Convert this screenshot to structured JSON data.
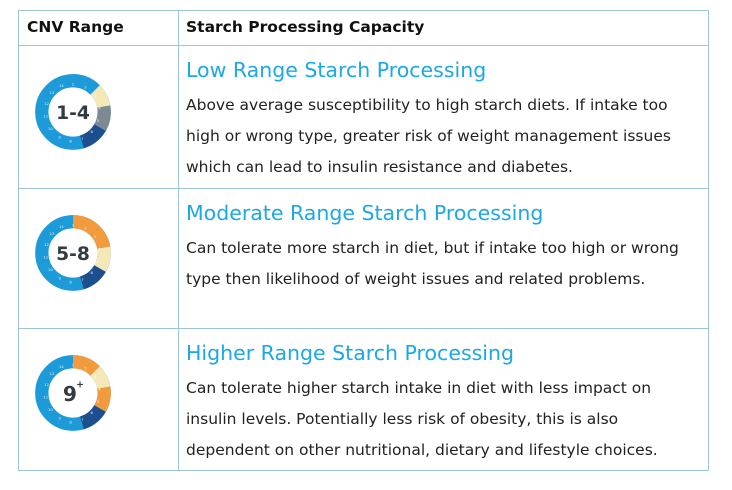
{
  "header": {
    "cnv_range": "CNV Range",
    "capacity": "Starch Processing Capacity"
  },
  "rows": [
    {
      "badge": "1-4",
      "title": "Low Range Starch Processing",
      "description": "Above average susceptibility to high starch diets. If intake too high or wrong type, greater risk of weight management issues which can lead to insulin resistance and diabetes."
    },
    {
      "badge": "5-8",
      "title": "Moderate Range Starch Processing",
      "description": "Can tolerate more starch in diet, but if intake too high or wrong type then likelihood of weight issues and related problems."
    },
    {
      "badge": "9",
      "badge_sup": "+",
      "title": "Higher Range Starch Processing",
      "description": "Can tolerate higher starch intake in diet with less impact on insulin levels.  Potentially less risk of obesity, this is also dependent on other nutritional, dietary and lifestyle choices."
    }
  ],
  "colors": {
    "title": "#1ba8e4",
    "border": "#9fc4d9",
    "ring_blue": "#1d9ad8",
    "ring_cream": "#f4e9b6",
    "ring_orange": "#f19a3e",
    "ring_gray": "#7d8a93",
    "ring_navy": "#1d4f8f"
  }
}
